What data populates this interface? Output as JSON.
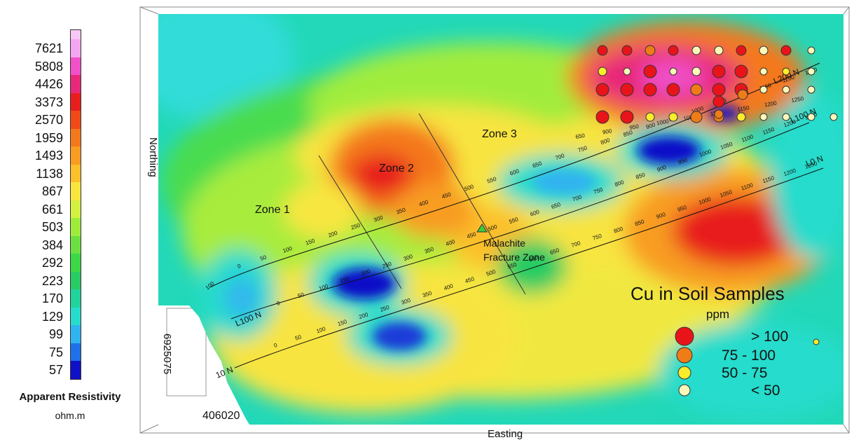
{
  "colorbar": {
    "title": "Apparent Resistivity",
    "unit": "ohm.m",
    "ticks": [
      "7621",
      "5808",
      "4426",
      "3373",
      "2570",
      "1959",
      "1493",
      "1138",
      "867",
      "661",
      "503",
      "384",
      "292",
      "223",
      "170",
      "129",
      "99",
      "75",
      "57"
    ],
    "colors": [
      "#f5a6f0",
      "#f050c8",
      "#e8287a",
      "#e81e1e",
      "#f04a18",
      "#f4781c",
      "#f89c22",
      "#fcc02c",
      "#f8e640",
      "#d4f040",
      "#a0ec3c",
      "#6ce040",
      "#3cd848",
      "#28cc64",
      "#20d49c",
      "#28dccc",
      "#30b4f0",
      "#2070e8",
      "#1010c8"
    ]
  },
  "axes": {
    "easting_label": "Easting",
    "northing_label": "Northing",
    "easting_tick": "406020",
    "northing_tick": "6925075"
  },
  "zones": {
    "zone1": "Zone 1",
    "zone2": "Zone 2",
    "zone3": "Zone 3",
    "malachite_1": "Malachite",
    "malachite_2": "Fracture Zone"
  },
  "lines": {
    "l100s": "L100 N",
    "l0": "L0 N",
    "l100n": "L100 N",
    "l200n": "L200 N",
    "l0_south": "10 N"
  },
  "stations": {
    "line1": [
      "0",
      "50",
      "100",
      "150",
      "200",
      "250",
      "300",
      "350",
      "400",
      "450",
      "500",
      "550",
      "600",
      "650",
      "700",
      "750",
      "800",
      "850",
      "900",
      "950",
      "1000",
      "1050",
      "1100",
      "1150",
      "1200",
      "1250"
    ],
    "line1_left": "100",
    "line2": [
      "0",
      "50",
      "100",
      "150",
      "200",
      "250",
      "300",
      "350",
      "400",
      "450",
      "500",
      "550",
      "600",
      "650",
      "700",
      "750",
      "800",
      "850",
      "900",
      "950",
      "1000",
      "1050",
      "1100",
      "1150",
      "1200",
      "1250"
    ],
    "line3": [
      "0",
      "50",
      "100",
      "150",
      "200",
      "250",
      "300",
      "350",
      "400",
      "450",
      "500",
      "550",
      "600",
      "650",
      "700",
      "750",
      "800",
      "850",
      "900",
      "950",
      "1000",
      "1050",
      "1100",
      "1150",
      "1200",
      "1250"
    ],
    "line4": [
      "650",
      "900",
      "950",
      "1000",
      "1050",
      "1100",
      "1150",
      "1200",
      "1250"
    ],
    "line5": [
      "1050",
      "1100",
      "1150",
      "1200",
      "1250"
    ]
  },
  "legend": {
    "title": "Cu in Soil Samples",
    "unit": "ppm",
    "items": [
      {
        "label": ">  100",
        "color": "#e8141a"
      },
      {
        "label": "75  -  100",
        "color": "#f07c18"
      },
      {
        "label": "50  -  75",
        "color": "#f8ec2c"
      },
      {
        "label": "<  50",
        "color": "#fcf8b8"
      }
    ]
  }
}
